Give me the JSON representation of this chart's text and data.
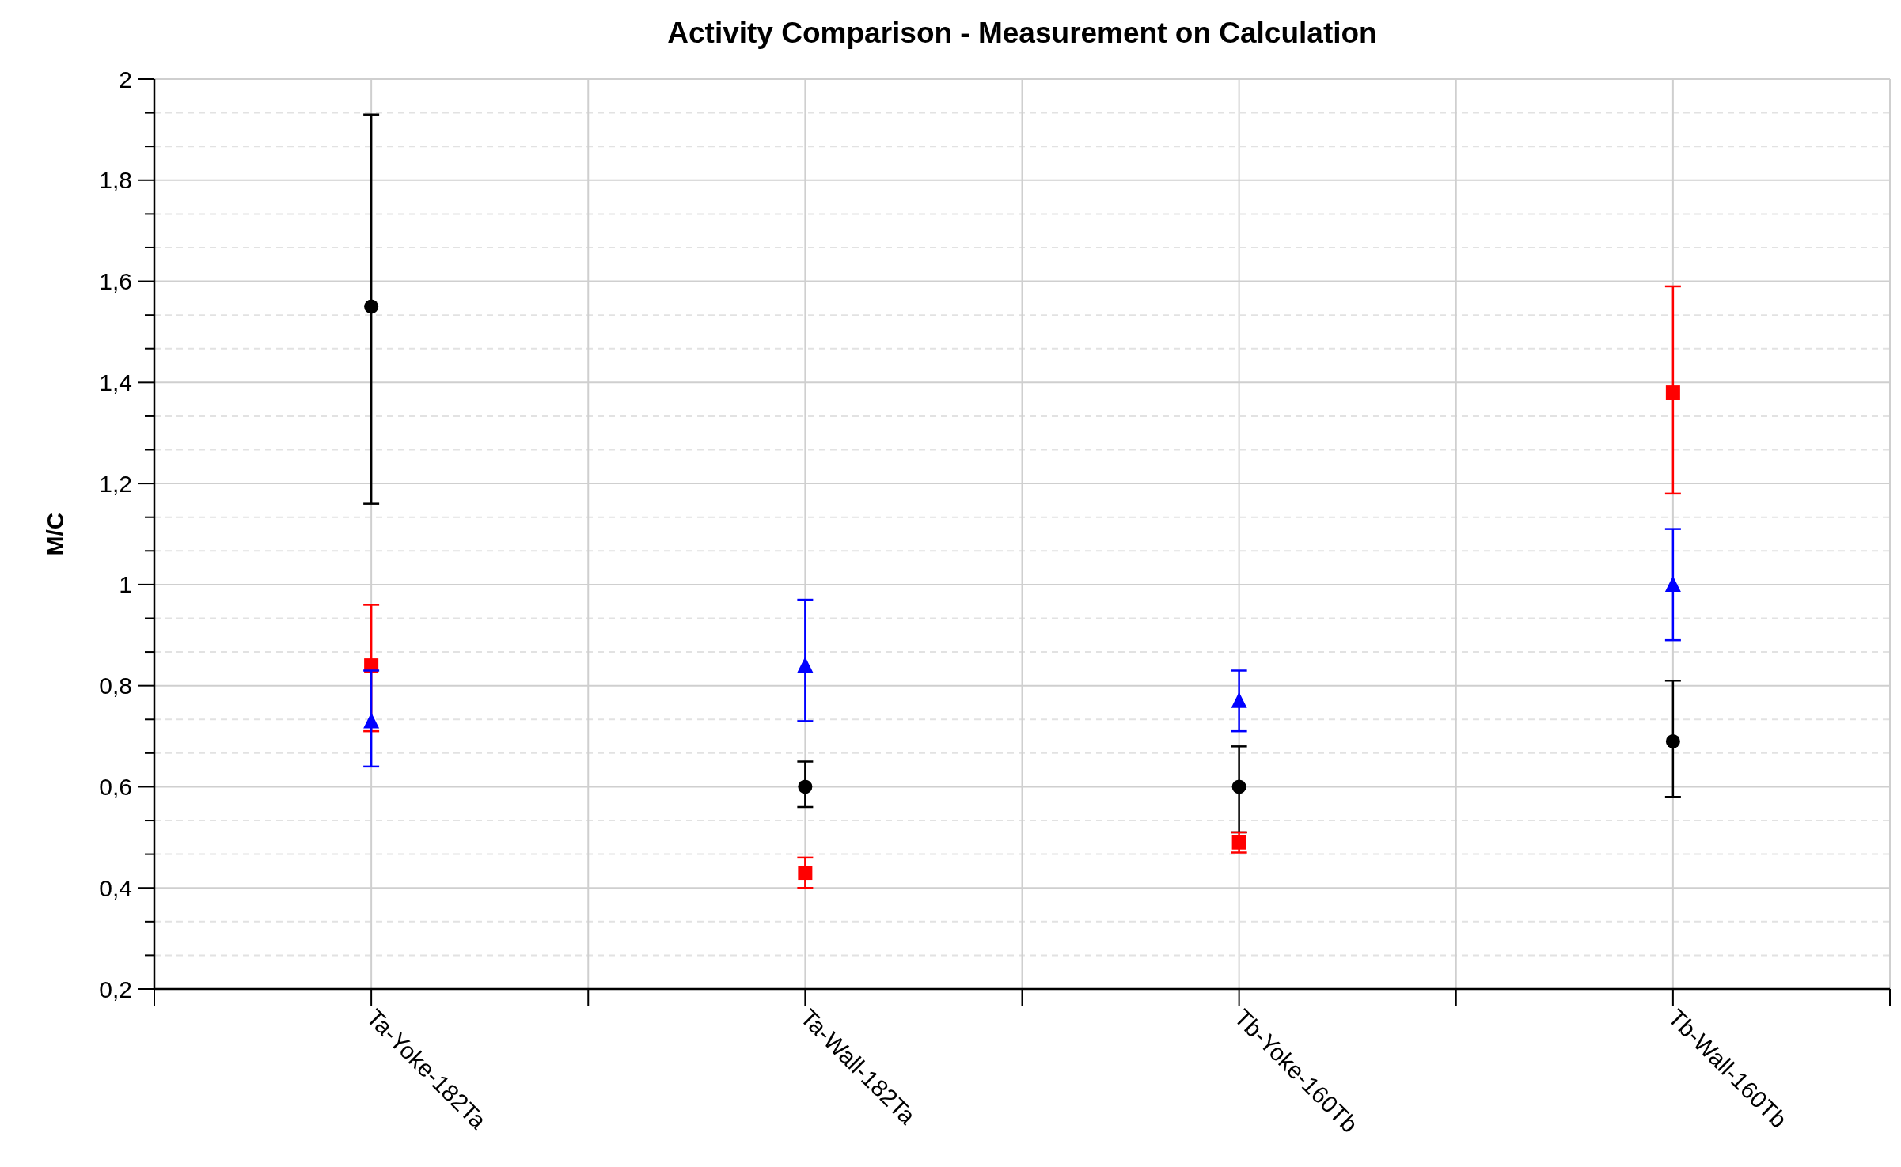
{
  "chart_data": {
    "type": "scatter",
    "title": "Activity Comparison - Measurement on Calculation",
    "ylabel": "M/C",
    "categories": [
      "Ta-Yoke-182Ta",
      "Ta-Wall-182Ta",
      "Tb-Yoke-160Tb",
      "Tb-Wall-160Tb"
    ],
    "series": [
      {
        "color": "#000000",
        "marker": "circle",
        "values": [
          1.55,
          0.6,
          0.6,
          0.69
        ],
        "errors": [
          [
            1.16,
            1.93
          ],
          [
            0.56,
            0.65
          ],
          [
            0.51,
            0.68
          ],
          [
            0.58,
            0.81
          ]
        ]
      },
      {
        "color": "#ff0000",
        "marker": "square",
        "values": [
          0.84,
          0.43,
          0.49,
          1.38
        ],
        "errors": [
          [
            0.71,
            0.96
          ],
          [
            0.4,
            0.46
          ],
          [
            0.47,
            0.51
          ],
          [
            1.18,
            1.59
          ]
        ]
      },
      {
        "color": "#0000ff",
        "marker": "triangle",
        "values": [
          0.73,
          0.84,
          0.77,
          1.0
        ],
        "errors": [
          [
            0.64,
            0.83
          ],
          [
            0.73,
            0.97
          ],
          [
            0.71,
            0.83
          ],
          [
            0.89,
            1.11
          ]
        ]
      }
    ],
    "ylim": [
      0.2,
      2
    ],
    "yticks": [
      {
        "value": 0.2,
        "label": "0,2"
      },
      {
        "value": 0.2667,
        "label": null
      },
      {
        "value": 0.3333,
        "label": null
      },
      {
        "value": 0.4,
        "label": "0,4"
      },
      {
        "value": 0.4667,
        "label": null
      },
      {
        "value": 0.5333,
        "label": null
      },
      {
        "value": 0.6,
        "label": "0,6"
      },
      {
        "value": 0.6667,
        "label": null
      },
      {
        "value": 0.7333,
        "label": null
      },
      {
        "value": 0.8,
        "label": "0,8"
      },
      {
        "value": 0.8667,
        "label": null
      },
      {
        "value": 0.9333,
        "label": null
      },
      1,
      {
        "value": 1.0667,
        "label": null
      },
      {
        "value": 1.1333,
        "label": null
      },
      {
        "value": 1.2,
        "label": "1,2"
      },
      {
        "value": 1.2667,
        "label": null
      },
      {
        "value": 1.3333,
        "label": null
      },
      {
        "value": 1.4,
        "label": "1,4"
      },
      {
        "value": 1.4667,
        "label": null
      },
      {
        "value": 1.5333,
        "label": null
      },
      {
        "value": 1.6,
        "label": "1,6"
      },
      {
        "value": 1.6667,
        "label": null
      },
      {
        "value": 1.7333,
        "label": null
      },
      {
        "value": 1.8,
        "label": "1,8"
      },
      {
        "value": 1.8667,
        "label": null
      },
      {
        "value": 1.9333,
        "label": null
      },
      2
    ],
    "grid": true
  }
}
